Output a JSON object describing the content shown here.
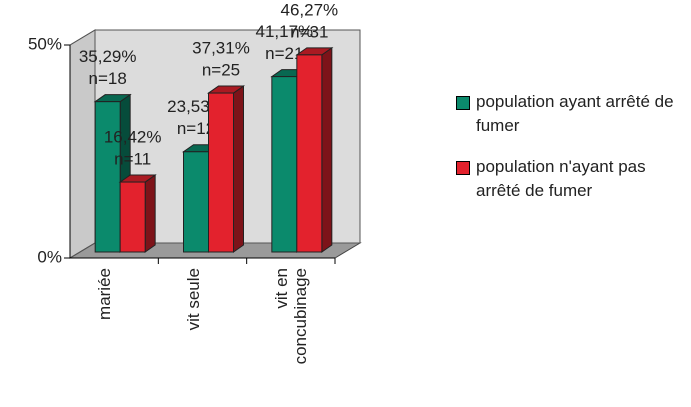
{
  "chart_data": {
    "type": "bar3d",
    "categories": [
      "mariée",
      "vit seule",
      "vit en concubinage"
    ],
    "series": [
      {
        "name": "population ayant arrêté de fumer",
        "color": "#0b8a6c",
        "values": [
          35.29,
          23.53,
          41.17
        ],
        "value_labels": [
          "35,29%",
          "23,53%",
          "41,17%"
        ],
        "n_labels": [
          "n=18",
          "n=12",
          "n=21"
        ]
      },
      {
        "name": "population n'ayant pas arrêté de fumer",
        "color": "#e3222d",
        "values": [
          16.42,
          37.31,
          46.27
        ],
        "value_labels": [
          "16,42%",
          "37,31%",
          "46,27%"
        ],
        "n_labels": [
          "n=11",
          "n=25",
          "n=31"
        ]
      }
    ],
    "ylim": [
      0,
      50
    ],
    "yticks": [
      {
        "value": 0,
        "label": "0%"
      },
      {
        "value": 50,
        "label": "50%"
      }
    ],
    "legend": "right"
  }
}
